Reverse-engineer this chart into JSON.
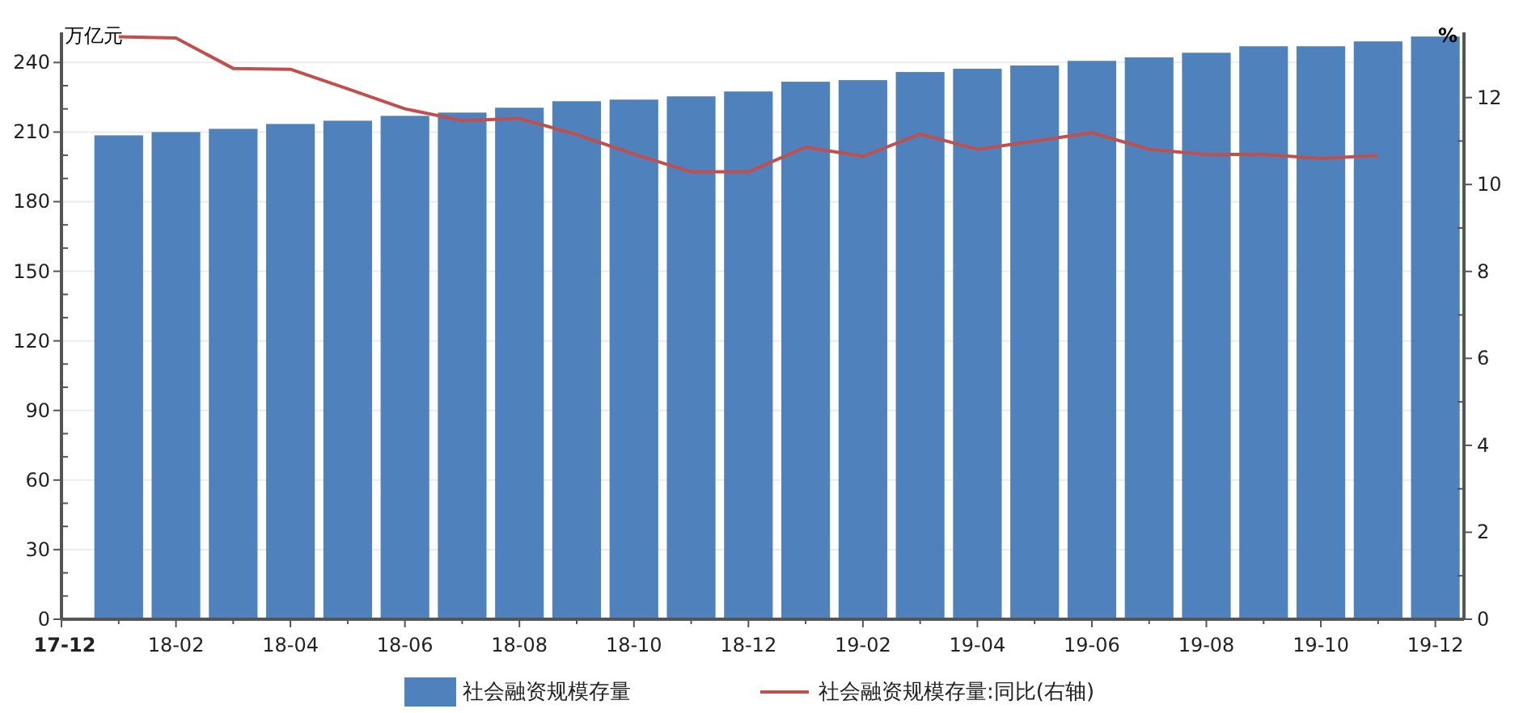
{
  "chart_data": {
    "type": "bar",
    "ylabel": "万亿元",
    "y2label": "%",
    "categories": [
      "17-12",
      null,
      "18-02",
      null,
      "18-04",
      null,
      "18-06",
      null,
      "18-08",
      null,
      "18-10",
      null,
      "18-12",
      null,
      "19-02",
      null,
      "19-04",
      null,
      "19-06",
      null,
      "19-08",
      null,
      "19-10",
      null,
      "19-12"
    ],
    "series": [
      {
        "name": "社会融资规模存量",
        "color": "#4f81bd",
        "values": [
          null,
          208.6,
          210,
          211.4,
          213.5,
          214.9,
          217,
          218.4,
          220.5,
          223.3,
          224,
          225.4,
          227.5,
          231.7,
          232.4,
          235.9,
          237.3,
          238.7,
          240.7,
          242.2,
          244.2,
          247,
          247,
          249.1,
          251.2
        ]
      },
      {
        "name": "社会融资规模存量:同比(右轴)",
        "type": "line",
        "axis": "y2",
        "color": "#c0504d",
        "values": [
          null,
          13.4,
          13.37,
          12.67,
          12.65,
          12.2,
          11.74,
          11.47,
          11.52,
          11.15,
          10.7,
          10.29,
          10.29,
          10.86,
          10.65,
          11.16,
          10.81,
          11.0,
          11.19,
          10.81,
          10.69,
          10.69,
          10.6,
          10.67,
          null
        ]
      }
    ],
    "ylim": [
      0,
      253
    ],
    "yticks": [
      0,
      30,
      60,
      90,
      120,
      150,
      180,
      210,
      240
    ],
    "y2lim": [
      0,
      13.5
    ],
    "y2ticks": [
      0,
      2,
      4,
      6,
      8,
      10,
      12
    ],
    "grid": "y",
    "legend": "bottom",
    "line_style": "solid",
    "marker": "none"
  }
}
